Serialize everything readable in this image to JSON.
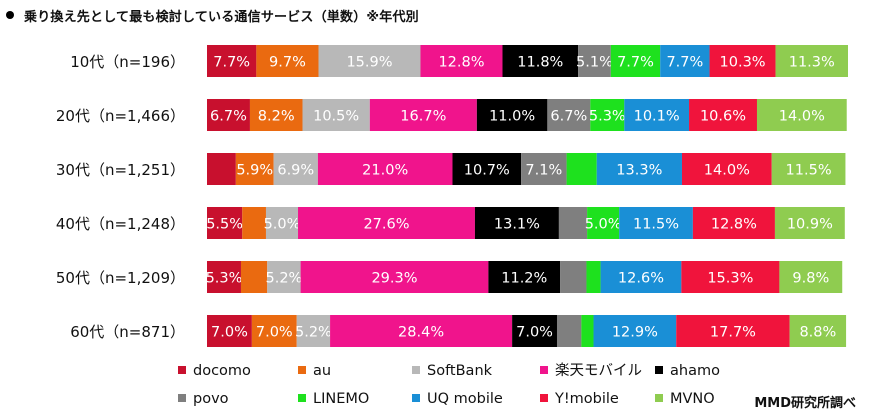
{
  "title": "乗り換え先として最も検討している通信サービス（単数）※年代別",
  "credit": "MMD研究所調べ",
  "colors": {
    "docomo": "#c8102e",
    "au": "#ea6a10",
    "SoftBank": "#b8b8b8",
    "rakuten": "#f0148c",
    "ahamo": "#000000",
    "povo": "#7f7f7f",
    "LINEMO": "#1ee11e",
    "UQ": "#1a8fd6",
    "Ymobile": "#f0143c",
    "MVNO": "#8fcc50"
  },
  "chart_data": {
    "type": "bar",
    "orientation": "horizontal",
    "stacked": true,
    "percent": true,
    "categories": [
      "10代（n=196）",
      "20代（n=1,466）",
      "30代（n=1,251）",
      "40代（n=1,248）",
      "50代（n=1,209）",
      "60代（n=871）"
    ],
    "series": [
      {
        "name": "docomo",
        "key": "docomo",
        "values": [
          7.7,
          6.7,
          4.5,
          5.5,
          5.3,
          7.0
        ],
        "labels": [
          "7.7%",
          "6.7%",
          "",
          "5.5%",
          "5.3%",
          "7.0%"
        ]
      },
      {
        "name": "au",
        "key": "au",
        "values": [
          9.7,
          8.2,
          5.9,
          3.7,
          4.1,
          7.0
        ],
        "labels": [
          "9.7%",
          "8.2%",
          "5.9%",
          "",
          "",
          "7.0%"
        ]
      },
      {
        "name": "SoftBank",
        "key": "SoftBank",
        "values": [
          15.9,
          10.5,
          6.9,
          5.0,
          5.2,
          5.2
        ],
        "labels": [
          "15.9%",
          "10.5%",
          "6.9%",
          "5.0%",
          "5.2%",
          "5.2%"
        ]
      },
      {
        "name": "楽天モバイル",
        "key": "rakuten",
        "values": [
          12.8,
          16.7,
          21.0,
          27.6,
          29.3,
          28.4
        ],
        "labels": [
          "12.8%",
          "16.7%",
          "21.0%",
          "27.6%",
          "29.3%",
          "28.4%"
        ]
      },
      {
        "name": "ahamo",
        "key": "ahamo",
        "values": [
          11.8,
          11.0,
          10.7,
          13.1,
          11.2,
          7.0
        ],
        "labels": [
          "11.8%",
          "11.0%",
          "10.7%",
          "13.1%",
          "11.2%",
          "7.0%"
        ]
      },
      {
        "name": "povo",
        "key": "povo",
        "values": [
          5.1,
          6.7,
          7.1,
          4.4,
          4.1,
          3.8
        ],
        "labels": [
          "5.1%",
          "6.7%",
          "7.1%",
          "",
          "",
          ""
        ]
      },
      {
        "name": "LINEMO",
        "key": "LINEMO",
        "values": [
          7.7,
          5.3,
          4.7,
          5.0,
          2.2,
          1.9
        ],
        "labels": [
          "7.7%",
          "5.3%",
          "",
          "5.0%",
          "",
          ""
        ]
      },
      {
        "name": "UQ mobile",
        "key": "UQ",
        "values": [
          7.7,
          10.1,
          13.3,
          11.5,
          12.6,
          12.9
        ],
        "labels": [
          "7.7%",
          "10.1%",
          "13.3%",
          "11.5%",
          "12.6%",
          "12.9%"
        ]
      },
      {
        "name": "Y!mobile",
        "key": "Ymobile",
        "values": [
          10.3,
          10.6,
          14.0,
          12.8,
          15.3,
          17.7
        ],
        "labels": [
          "10.3%",
          "10.6%",
          "14.0%",
          "12.8%",
          "15.3%",
          "17.7%"
        ]
      },
      {
        "name": "MVNO",
        "key": "MVNO",
        "values": [
          11.3,
          14.0,
          11.5,
          10.9,
          9.8,
          8.8
        ],
        "labels": [
          "11.3%",
          "14.0%",
          "11.5%",
          "10.9%",
          "9.8%",
          "8.8%"
        ]
      }
    ],
    "xlim": [
      0,
      100
    ],
    "legend_position": "bottom",
    "grid": false
  }
}
